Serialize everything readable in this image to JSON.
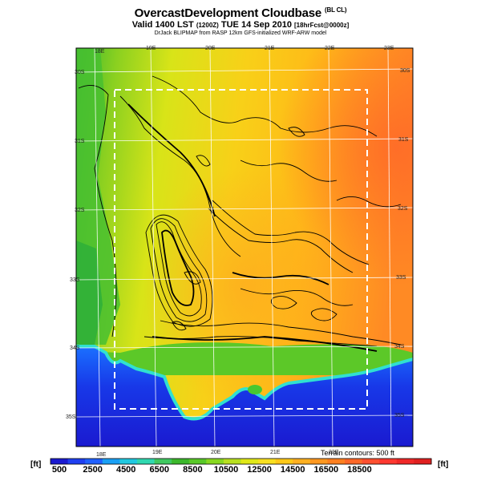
{
  "title": {
    "main": "OvercastDevelopment Cloudbase",
    "main_tag": "(BL CL)",
    "valid": "Valid 1400 LST",
    "valid_code": "(1200Z)",
    "date": "TUE 14 Sep 2010",
    "forecast_tag": "[18hrFcst@0000z]",
    "credit": "DrJack BLIPMAP from RASP 12km GFS-initialized WRF-ARW model"
  },
  "map": {
    "lon_labels_top": [
      "18E",
      "19E",
      "20E",
      "21E",
      "22E",
      "23E"
    ],
    "lon_labels_bottom": [
      "18E",
      "19E",
      "20E",
      "21E",
      "22E"
    ],
    "lat_labels_left": [
      "30S",
      "31S",
      "32S",
      "33S",
      "34S",
      "35S"
    ],
    "lat_labels_right": [
      "30S",
      "31S",
      "32S",
      "33S",
      "34S",
      "35S"
    ],
    "terrain_note": "Terrain contours: 500 ft"
  },
  "colorbar": {
    "unit_left": "[ft]",
    "unit_right": "[ft]",
    "tick_labels": [
      "500",
      "2500",
      "4500",
      "6500",
      "8500",
      "10500",
      "12500",
      "14500",
      "16500",
      "18500"
    ],
    "colors": [
      "#1a1ad0",
      "#1f3ff0",
      "#2060ff",
      "#1aa0f5",
      "#20c8e0",
      "#30d8b0",
      "#40c860",
      "#3cb82c",
      "#58c828",
      "#88d820",
      "#b8e020",
      "#e0e818",
      "#f8e020",
      "#ffc818",
      "#ffb020",
      "#ff9820",
      "#ff8020",
      "#ff6828",
      "#ff5030",
      "#ff3830",
      "#f02828",
      "#e02020"
    ]
  }
}
